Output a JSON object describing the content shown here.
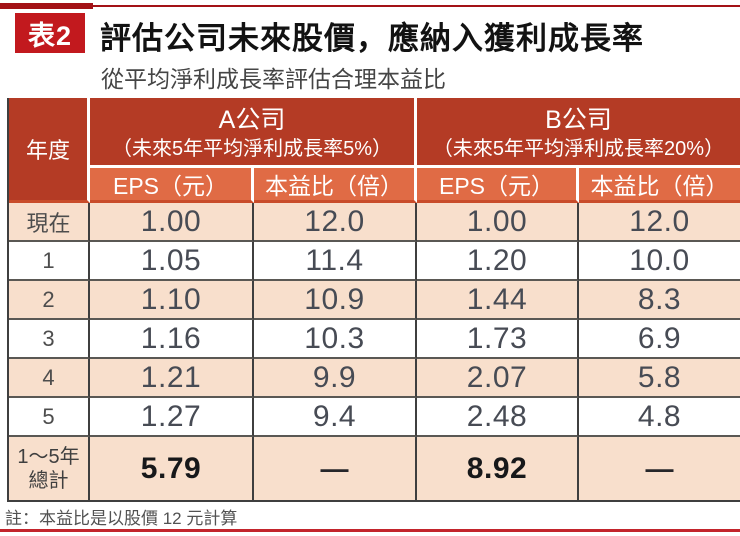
{
  "page": {
    "tag": "表2",
    "title": "評估公司未來股價，應納入獲利成長率",
    "subtitle": "從平均淨利成長率評估合理本益比",
    "note": "註：本益比是以股價 12 元計算"
  },
  "colors": {
    "header_dark_red": "#b43b25",
    "subheader_orange": "#e06b45",
    "row_peach": "#f8dfcc",
    "accent_red": "#c2191e",
    "rule_red": "#a31216",
    "bottom_rule_red": "#c3242c"
  },
  "table": {
    "year_header": "年度",
    "groups": [
      {
        "name": "A公司",
        "desc": "（未來5年平均淨利成長率5%）"
      },
      {
        "name": "B公司",
        "desc": "（未來5年平均淨利成長率20%）"
      }
    ],
    "sub_headers": [
      "EPS（元）",
      "本益比（倍）",
      "EPS（元）",
      "本益比（倍）"
    ],
    "rows": [
      {
        "year": "現在",
        "a_eps": "1.00",
        "a_per": "12.0",
        "b_eps": "1.00",
        "b_per": "12.0"
      },
      {
        "year": "1",
        "a_eps": "1.05",
        "a_per": "11.4",
        "b_eps": "1.20",
        "b_per": "10.0"
      },
      {
        "year": "2",
        "a_eps": "1.10",
        "a_per": "10.9",
        "b_eps": "1.44",
        "b_per": "8.3"
      },
      {
        "year": "3",
        "a_eps": "1.16",
        "a_per": "10.3",
        "b_eps": "1.73",
        "b_per": "6.9"
      },
      {
        "year": "4",
        "a_eps": "1.21",
        "a_per": "9.9",
        "b_eps": "2.07",
        "b_per": "5.8"
      },
      {
        "year": "5",
        "a_eps": "1.27",
        "a_per": "9.4",
        "b_eps": "2.48",
        "b_per": "4.8"
      }
    ],
    "total": {
      "label_line1": "1～5年",
      "label_line2": "總計",
      "a_eps": "5.79",
      "a_per": "—",
      "b_eps": "8.92",
      "b_per": "—"
    }
  },
  "chart_data": {
    "type": "table",
    "title": "評估公司未來股價，應納入獲利成長率",
    "subtitle": "從平均淨利成長率評估合理本益比",
    "columns": [
      "年度",
      "A公司 EPS（元）",
      "A公司 本益比（倍）",
      "B公司 EPS（元）",
      "B公司 本益比（倍）"
    ],
    "rows": [
      [
        "現在",
        1.0,
        12.0,
        1.0,
        12.0
      ],
      [
        "1",
        1.05,
        11.4,
        1.2,
        10.0
      ],
      [
        "2",
        1.1,
        10.9,
        1.44,
        8.3
      ],
      [
        "3",
        1.16,
        10.3,
        1.73,
        6.9
      ],
      [
        "4",
        1.21,
        9.9,
        2.07,
        5.8
      ],
      [
        "5",
        1.27,
        9.4,
        2.48,
        4.8
      ],
      [
        "1～5年總計",
        5.79,
        null,
        8.92,
        null
      ]
    ],
    "note": "本益比是以股價 12 元計算"
  }
}
